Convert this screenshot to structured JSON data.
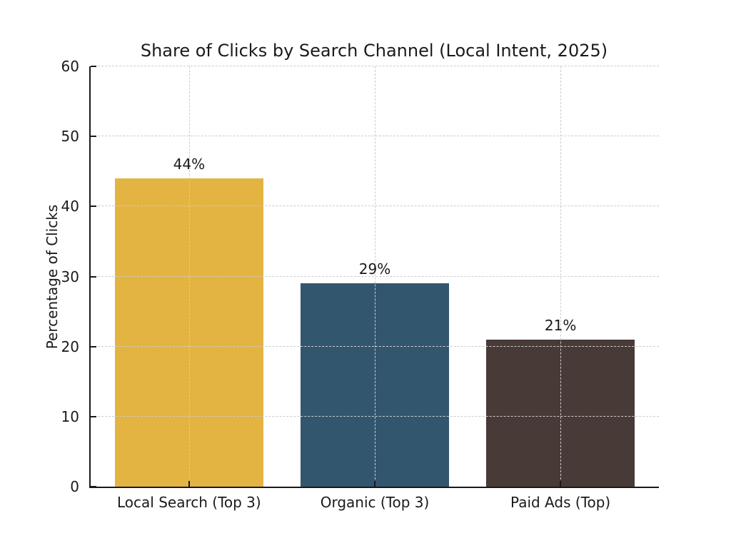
{
  "chart_data": {
    "type": "bar",
    "title": "Share of Clicks by Search Channel (Local Intent, 2025)",
    "ylabel": "Percentage of Clicks",
    "xlabel": "",
    "categories": [
      "Local Search (Top 3)",
      "Organic (Top 3)",
      "Paid Ads (Top)"
    ],
    "values": [
      44,
      29,
      21
    ],
    "value_labels": [
      "44%",
      "29%",
      "21%"
    ],
    "bar_colors": [
      "#E4B442",
      "#33566F",
      "#483A37"
    ],
    "ylim": [
      0,
      60
    ],
    "yticks": [
      0,
      10,
      20,
      30,
      40,
      50,
      60
    ],
    "grid": "dashed, horizontal and vertical, drawn over bars",
    "grid_color": "#cccccc",
    "axis_color": "#1a1a1a",
    "text_color": "#1a1a1a",
    "background_color": "#ffffff",
    "legend": "none"
  }
}
